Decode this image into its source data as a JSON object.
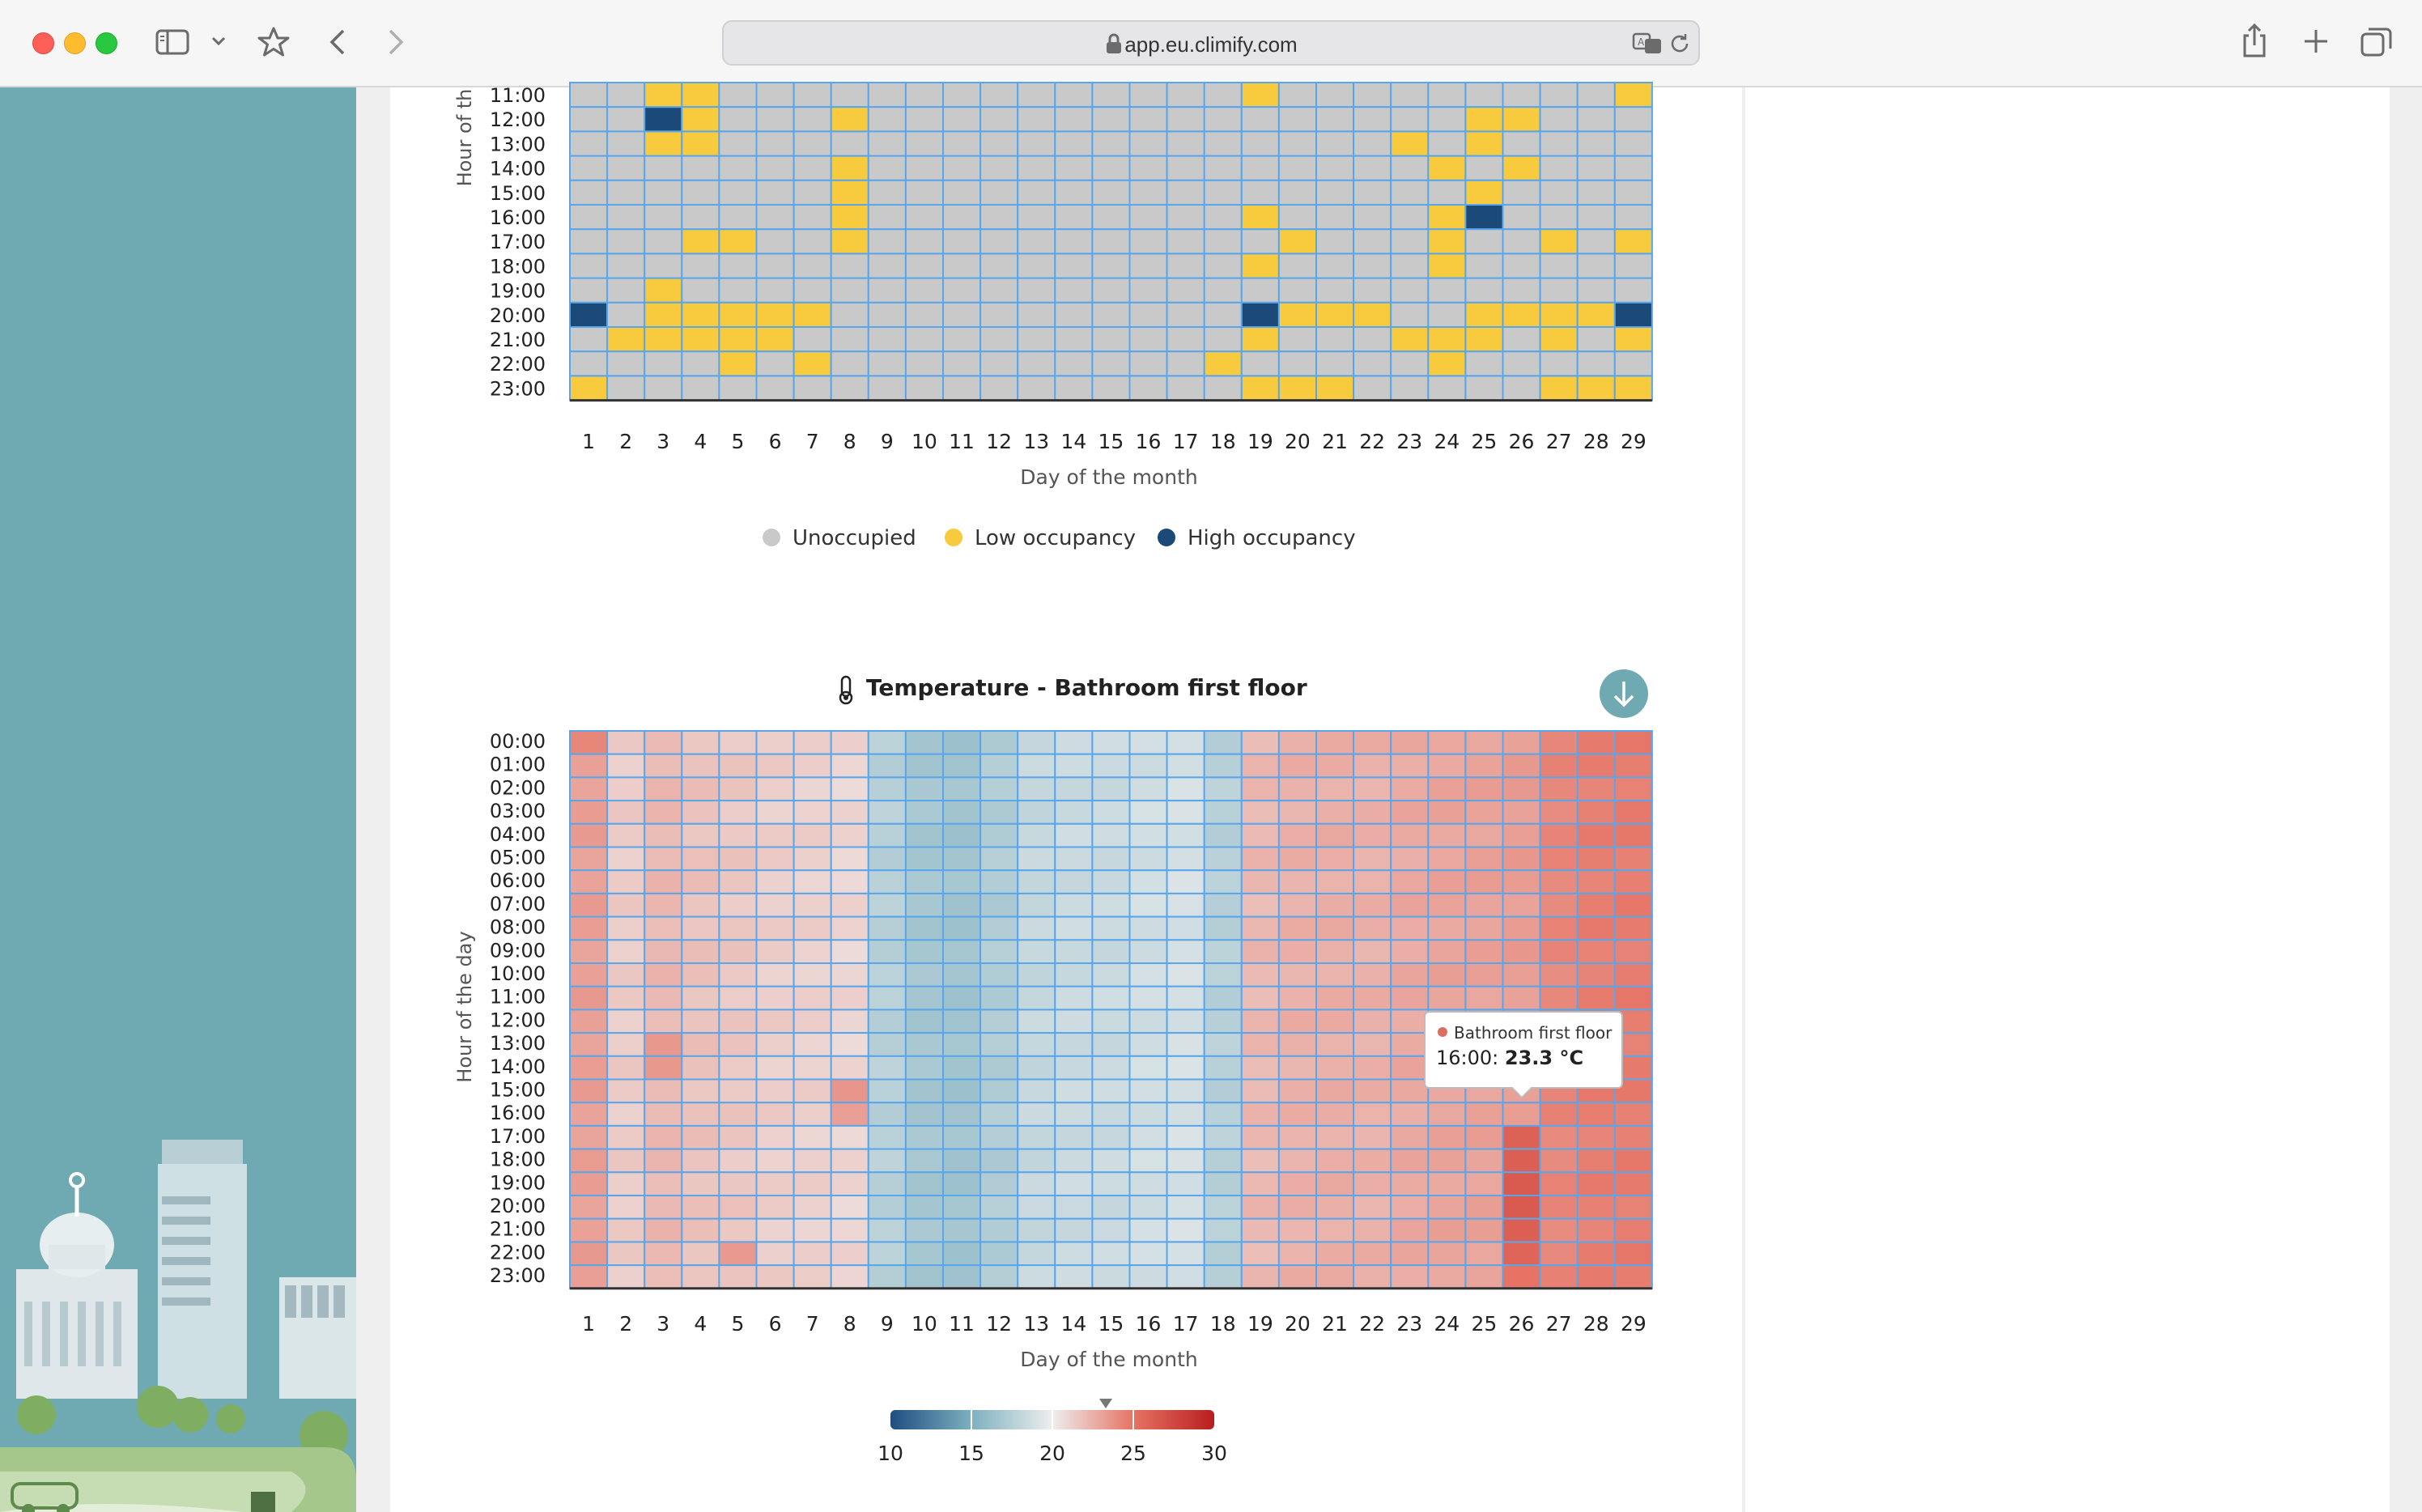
{
  "browser": {
    "url": "app.eu.climify.com",
    "icons": [
      "sidebar-toggle-icon",
      "chevron-down-icon",
      "star-icon",
      "back-icon",
      "forward-icon",
      "lock-icon",
      "translate-icon",
      "reload-icon",
      "share-icon",
      "new-tab-icon",
      "tabs-overview-icon"
    ]
  },
  "occupancy_chart": {
    "ylabel": "Hour of th",
    "xlabel": "Day of the month",
    "legend": [
      {
        "label": "Unoccupied",
        "color": "#c9c9c9"
      },
      {
        "label": "Low occupancy",
        "color": "#f7cb3d"
      },
      {
        "label": "High occupancy",
        "color": "#1c4a78"
      }
    ]
  },
  "temperature_chart": {
    "title": "Temperature - Bathroom first floor",
    "title_icon": "thermometer-icon",
    "download_icon": "download-icon",
    "ylabel": "Hour of the day",
    "xlabel": "Day of the month",
    "tooltip": {
      "series": "Bathroom first floor",
      "hour": "16:00",
      "value": "23.3 °C"
    },
    "colorbar": {
      "ticks": [
        "10",
        "15",
        "20",
        "25",
        "30"
      ],
      "marker_value": 23.3
    }
  },
  "chart_data": [
    {
      "type": "heatmap",
      "title": "",
      "xlabel": "Day of the month",
      "ylabel": "Hour of th",
      "x": [
        "1",
        "2",
        "3",
        "4",
        "5",
        "6",
        "7",
        "8",
        "9",
        "10",
        "11",
        "12",
        "13",
        "14",
        "15",
        "16",
        "17",
        "18",
        "19",
        "20",
        "21",
        "22",
        "23",
        "24",
        "25",
        "26",
        "27",
        "28",
        "29"
      ],
      "y": [
        "11:00",
        "12:00",
        "13:00",
        "14:00",
        "15:00",
        "16:00",
        "17:00",
        "18:00",
        "19:00",
        "20:00",
        "21:00",
        "22:00",
        "23:00"
      ],
      "levels": {
        "0": "Unoccupied",
        "1": "Low occupancy",
        "2": "High occupancy"
      },
      "values": [
        [
          0,
          0,
          1,
          1,
          0,
          0,
          0,
          0,
          0,
          0,
          0,
          0,
          0,
          0,
          0,
          0,
          0,
          0,
          1,
          0,
          0,
          0,
          0,
          0,
          0,
          0,
          0,
          0,
          1
        ],
        [
          0,
          0,
          2,
          1,
          0,
          0,
          0,
          1,
          0,
          0,
          0,
          0,
          0,
          0,
          0,
          0,
          0,
          0,
          0,
          0,
          0,
          0,
          0,
          0,
          1,
          1,
          0,
          0,
          0
        ],
        [
          0,
          0,
          1,
          1,
          0,
          0,
          0,
          0,
          0,
          0,
          0,
          0,
          0,
          0,
          0,
          0,
          0,
          0,
          0,
          0,
          0,
          0,
          1,
          0,
          1,
          0,
          0,
          0,
          0
        ],
        [
          0,
          0,
          0,
          0,
          0,
          0,
          0,
          1,
          0,
          0,
          0,
          0,
          0,
          0,
          0,
          0,
          0,
          0,
          0,
          0,
          0,
          0,
          0,
          1,
          0,
          1,
          0,
          0,
          0
        ],
        [
          0,
          0,
          0,
          0,
          0,
          0,
          0,
          1,
          0,
          0,
          0,
          0,
          0,
          0,
          0,
          0,
          0,
          0,
          0,
          0,
          0,
          0,
          0,
          0,
          1,
          0,
          0,
          0,
          0
        ],
        [
          0,
          0,
          0,
          0,
          0,
          0,
          0,
          1,
          0,
          0,
          0,
          0,
          0,
          0,
          0,
          0,
          0,
          0,
          1,
          0,
          0,
          0,
          0,
          1,
          2,
          0,
          0,
          0,
          0
        ],
        [
          0,
          0,
          0,
          1,
          1,
          0,
          0,
          1,
          0,
          0,
          0,
          0,
          0,
          0,
          0,
          0,
          0,
          0,
          0,
          1,
          0,
          0,
          0,
          1,
          0,
          0,
          1,
          0,
          1
        ],
        [
          0,
          0,
          0,
          0,
          0,
          0,
          0,
          0,
          0,
          0,
          0,
          0,
          0,
          0,
          0,
          0,
          0,
          0,
          1,
          0,
          0,
          0,
          0,
          1,
          0,
          0,
          0,
          0,
          0
        ],
        [
          0,
          0,
          1,
          0,
          0,
          0,
          0,
          0,
          0,
          0,
          0,
          0,
          0,
          0,
          0,
          0,
          0,
          0,
          0,
          0,
          0,
          0,
          0,
          0,
          0,
          0,
          0,
          0,
          0
        ],
        [
          2,
          0,
          1,
          1,
          1,
          1,
          1,
          0,
          0,
          0,
          0,
          0,
          0,
          0,
          0,
          0,
          0,
          0,
          2,
          1,
          1,
          1,
          0,
          0,
          1,
          1,
          1,
          1,
          2
        ],
        [
          0,
          1,
          1,
          1,
          1,
          1,
          0,
          0,
          0,
          0,
          0,
          0,
          0,
          0,
          0,
          0,
          0,
          0,
          1,
          0,
          0,
          0,
          1,
          1,
          1,
          0,
          1,
          0,
          1
        ],
        [
          0,
          0,
          0,
          0,
          1,
          0,
          1,
          0,
          0,
          0,
          0,
          0,
          0,
          0,
          0,
          0,
          0,
          1,
          0,
          0,
          0,
          0,
          0,
          1,
          0,
          0,
          0,
          0,
          0
        ],
        [
          1,
          0,
          0,
          0,
          0,
          0,
          0,
          0,
          0,
          0,
          0,
          0,
          0,
          0,
          0,
          0,
          0,
          0,
          1,
          1,
          1,
          0,
          0,
          0,
          0,
          0,
          1,
          1,
          1
        ]
      ]
    },
    {
      "type": "heatmap",
      "title": "Temperature - Bathroom first floor",
      "xlabel": "Day of the month",
      "ylabel": "Hour of the day",
      "unit": "°C",
      "x": [
        "1",
        "2",
        "3",
        "4",
        "5",
        "6",
        "7",
        "8",
        "9",
        "10",
        "11",
        "12",
        "13",
        "14",
        "15",
        "16",
        "17",
        "18",
        "19",
        "20",
        "21",
        "22",
        "23",
        "24",
        "25",
        "26",
        "27",
        "28",
        "29"
      ],
      "y": [
        "00:00",
        "01:00",
        "02:00",
        "03:00",
        "04:00",
        "05:00",
        "06:00",
        "07:00",
        "08:00",
        "09:00",
        "10:00",
        "11:00",
        "12:00",
        "13:00",
        "14:00",
        "15:00",
        "16:00",
        "17:00",
        "18:00",
        "19:00",
        "20:00",
        "21:00",
        "22:00",
        "23:00"
      ],
      "colorscale": {
        "min": 10,
        "max": 30
      },
      "day_mean_values": [
        23.2,
        21.4,
        22.2,
        21.8,
        21.6,
        21.3,
        21.2,
        21.0,
        17.6,
        16.8,
        16.6,
        17.3,
        18.2,
        18.4,
        18.4,
        18.7,
        18.9,
        17.6,
        22.2,
        22.5,
        22.6,
        22.5,
        22.8,
        23.0,
        23.1,
        23.3,
        24.2,
        24.5,
        24.6
      ],
      "highlighted_values": [
        {
          "day": "26",
          "hour": "16:00",
          "value": 23.3
        },
        {
          "day": "26",
          "hour": "17:00",
          "value": 26.0
        },
        {
          "day": "26",
          "hour": "18:00",
          "value": 26.2
        },
        {
          "day": "26",
          "hour": "19:00",
          "value": 26.4
        },
        {
          "day": "26",
          "hour": "20:00",
          "value": 26.4
        },
        {
          "day": "26",
          "hour": "21:00",
          "value": 26.2
        },
        {
          "day": "26",
          "hour": "22:00",
          "value": 25.8
        },
        {
          "day": "26",
          "hour": "23:00",
          "value": 25.0
        },
        {
          "day": "8",
          "hour": "15:00",
          "value": 23.6
        },
        {
          "day": "8",
          "hour": "16:00",
          "value": 23.2
        },
        {
          "day": "3",
          "hour": "13:00",
          "value": 23.5
        },
        {
          "day": "3",
          "hour": "14:00",
          "value": 23.5
        },
        {
          "day": "5",
          "hour": "22:00",
          "value": 23.4
        },
        {
          "day": "1",
          "hour": "00:00",
          "value": 24.2
        }
      ]
    }
  ]
}
